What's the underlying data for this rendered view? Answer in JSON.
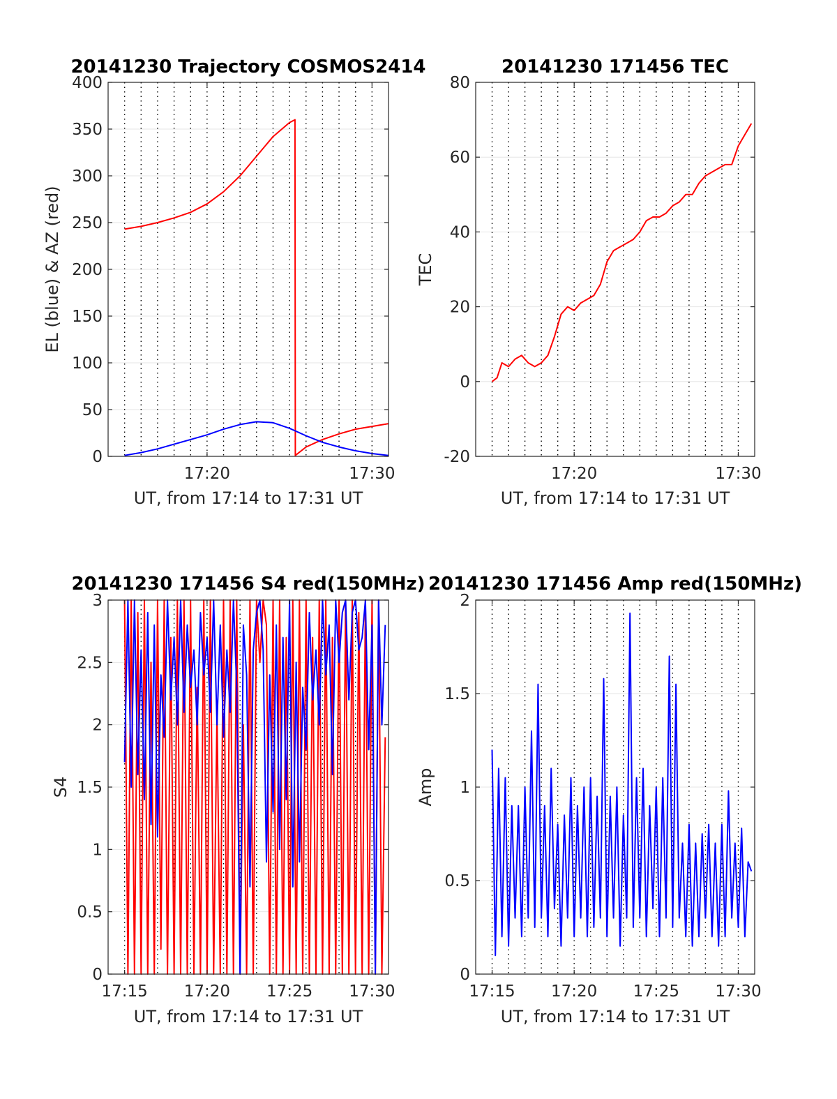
{
  "figure": {
    "background": "#ffffff"
  },
  "chart_data": [
    {
      "type": "line",
      "title": "20141230 Trajectory COSMOS2414",
      "xlabel": "UT, from 17:14 to 17:31 UT",
      "ylabel": "EL (blue) & AZ (red)",
      "x_unit": "minutes since 17:00 UT",
      "xlim": [
        14,
        31
      ],
      "ylim": [
        0,
        400
      ],
      "xticks": [
        20,
        30
      ],
      "xtick_labels": [
        "17:20",
        "17:30"
      ],
      "yticks": [
        0,
        50,
        100,
        150,
        200,
        250,
        300,
        350,
        400
      ],
      "ytick_labels": [
        "0",
        "50",
        "100",
        "150",
        "200",
        "250",
        "300",
        "350",
        "400"
      ],
      "dotted_vlines": [
        15.0,
        16.0,
        17.0,
        18.0,
        19.0,
        20.0,
        21.0,
        22.0,
        23.0,
        24.0,
        25.0,
        26.0,
        27.0,
        28.0,
        29.0,
        30.0
      ],
      "grid": true,
      "series": [
        {
          "color": "#ff0000",
          "x": [
            15.0,
            16.0,
            17.0,
            18.0,
            19.0,
            20.0,
            21.0,
            22.0,
            23.0,
            24.0,
            25.0,
            25.33,
            25.35,
            26.0,
            27.0,
            28.0,
            29.0,
            30.0,
            31.0
          ],
          "values": [
            243,
            246,
            250,
            255,
            261,
            270,
            283,
            300,
            321,
            342,
            357,
            360,
            1,
            10,
            18,
            24,
            29,
            32,
            35
          ]
        },
        {
          "color": "#0000ff",
          "x": [
            15.0,
            16.0,
            17.0,
            18.0,
            19.0,
            20.0,
            21.0,
            22.0,
            23.0,
            24.0,
            25.0,
            26.0,
            27.0,
            28.0,
            29.0,
            30.0,
            31.0
          ],
          "values": [
            1,
            4,
            8,
            13,
            18,
            23,
            29,
            34,
            37,
            36,
            30,
            22,
            15,
            10,
            6,
            3,
            1
          ]
        }
      ]
    },
    {
      "type": "line",
      "title": "20141230 171456 TEC",
      "xlabel": "UT, from 17:14 to 17:31 UT",
      "ylabel": "TEC",
      "x_unit": "minutes since 17:00 UT",
      "xlim": [
        14,
        31
      ],
      "ylim": [
        -20,
        80
      ],
      "xticks": [
        20,
        30
      ],
      "xtick_labels": [
        "17:20",
        "17:30"
      ],
      "yticks": [
        -20,
        0,
        20,
        40,
        60,
        80
      ],
      "ytick_labels": [
        "-20",
        "0",
        "20",
        "40",
        "60",
        "80"
      ],
      "dotted_vlines": [
        15.0,
        16.0,
        17.0,
        18.0,
        19.0,
        20.0,
        21.0,
        22.0,
        23.0,
        24.0,
        25.0,
        26.0,
        27.0,
        28.0,
        29.0,
        30.0
      ],
      "grid": true,
      "series": [
        {
          "color": "#ff0000",
          "x": [
            15.0,
            15.3,
            15.6,
            16.0,
            16.4,
            16.8,
            17.2,
            17.6,
            18.0,
            18.4,
            18.8,
            19.2,
            19.6,
            20.0,
            20.4,
            20.8,
            21.2,
            21.6,
            22.0,
            22.4,
            22.8,
            23.2,
            23.6,
            24.0,
            24.4,
            24.8,
            25.2,
            25.6,
            26.0,
            26.4,
            26.8,
            27.2,
            27.6,
            28.0,
            28.4,
            28.8,
            29.2,
            29.6,
            30.0,
            30.4,
            30.8
          ],
          "values": [
            0,
            1,
            5,
            4,
            6,
            7,
            5,
            4,
            5,
            7,
            12,
            18,
            20,
            19,
            21,
            22,
            23,
            26,
            32,
            35,
            36,
            37,
            38,
            40,
            43,
            44,
            44,
            45,
            47,
            48,
            50,
            50,
            53,
            55,
            56,
            57,
            58,
            58,
            63,
            66,
            69
          ]
        }
      ]
    },
    {
      "type": "line",
      "title": "20141230 171456 S4 red(150MHz)",
      "xlabel": "UT, from 17:14 to 17:31 UT",
      "ylabel": "S4",
      "x_unit": "minutes since 17:00 UT",
      "xlim": [
        14,
        31
      ],
      "ylim": [
        0,
        3
      ],
      "xticks": [
        15,
        20,
        25,
        30
      ],
      "xtick_labels": [
        "17:15",
        "17:20",
        "17:25",
        "17:30"
      ],
      "yticks": [
        0,
        0.5,
        1,
        1.5,
        2,
        2.5,
        3
      ],
      "ytick_labels": [
        "0",
        "0.5",
        "1",
        "1.5",
        "2",
        "2.5",
        "3"
      ],
      "dotted_vlines": [
        15.0,
        16.0,
        17.0,
        18.0,
        19.0,
        20.0,
        21.0,
        22.0,
        23.0,
        24.0,
        25.0,
        26.0,
        27.0,
        28.0,
        29.0,
        30.0
      ],
      "grid": true,
      "series": [
        {
          "color": "#ff0000",
          "x": [
            15.0,
            15.2,
            15.4,
            15.6,
            15.8,
            16.0,
            16.2,
            16.4,
            16.6,
            16.8,
            17.0,
            17.2,
            17.4,
            17.6,
            17.8,
            18.0,
            18.2,
            18.4,
            18.6,
            18.8,
            19.0,
            19.2,
            19.4,
            19.6,
            19.8,
            20.0,
            20.2,
            20.4,
            20.6,
            20.8,
            21.0,
            21.2,
            21.4,
            21.6,
            21.8,
            22.0,
            22.2,
            22.4,
            22.6,
            22.8,
            23.0,
            23.2,
            23.4,
            23.6,
            23.8,
            24.0,
            24.2,
            24.4,
            24.6,
            24.8,
            25.0,
            25.2,
            25.4,
            25.6,
            25.8,
            26.0,
            26.2,
            26.4,
            26.6,
            26.8,
            27.0,
            27.2,
            27.4,
            27.6,
            27.8,
            28.0,
            28.2,
            28.4,
            28.6,
            28.8,
            29.0,
            29.2,
            29.4,
            29.6,
            29.8,
            30.0,
            30.2,
            30.4,
            30.6,
            30.8
          ],
          "values": [
            3.0,
            0.0,
            3.0,
            0.0,
            2.9,
            0.0,
            3.0,
            0.0,
            2.5,
            0.0,
            3.0,
            0.2,
            3.0,
            0.0,
            2.7,
            0.0,
            3.0,
            0.0,
            3.0,
            0.0,
            3.0,
            0.0,
            2.3,
            0.0,
            3.0,
            0.0,
            3.0,
            0.0,
            2.1,
            0.0,
            3.0,
            0.0,
            3.0,
            0.0,
            3.0,
            0.0,
            2.0,
            0.0,
            3.0,
            0.0,
            3.0,
            2.5,
            3.0,
            2.8,
            0.0,
            3.0,
            0.0,
            3.0,
            0.0,
            2.7,
            0.0,
            3.0,
            0.0,
            3.0,
            0.0,
            3.0,
            0.0,
            2.7,
            0.0,
            3.0,
            0.0,
            3.0,
            0.0,
            2.7,
            0.0,
            3.0,
            0.0,
            3.0,
            0.0,
            3.0,
            0.0,
            2.9,
            0.0,
            3.0,
            0.0,
            3.0,
            0.0,
            3.0,
            0.0,
            1.9
          ]
        },
        {
          "color": "#0000ff",
          "x": [
            15.0,
            15.2,
            15.4,
            15.6,
            15.8,
            16.0,
            16.2,
            16.4,
            16.6,
            16.8,
            17.0,
            17.2,
            17.4,
            17.6,
            17.8,
            18.0,
            18.2,
            18.4,
            18.6,
            18.8,
            19.0,
            19.2,
            19.4,
            19.6,
            19.8,
            20.0,
            20.2,
            20.4,
            20.6,
            20.8,
            21.0,
            21.2,
            21.4,
            21.6,
            21.8,
            22.0,
            22.2,
            22.4,
            22.6,
            22.8,
            23.0,
            23.2,
            23.4,
            23.6,
            23.8,
            24.0,
            24.2,
            24.4,
            24.6,
            24.8,
            25.0,
            25.2,
            25.4,
            25.6,
            25.8,
            26.0,
            26.2,
            26.4,
            26.6,
            26.8,
            27.0,
            27.2,
            27.4,
            27.6,
            27.8,
            28.0,
            28.2,
            28.4,
            28.6,
            28.8,
            29.0,
            29.2,
            29.4,
            29.6,
            29.8,
            30.0,
            30.2,
            30.4,
            30.6,
            30.8
          ],
          "values": [
            1.7,
            3.0,
            1.5,
            3.0,
            1.6,
            2.6,
            1.4,
            2.9,
            1.2,
            2.8,
            1.1,
            2.4,
            1.9,
            3.0,
            2.2,
            2.7,
            2.0,
            3.0,
            2.1,
            2.8,
            2.3,
            2.6,
            2.0,
            2.9,
            2.4,
            2.7,
            2.1,
            3.0,
            2.0,
            2.8,
            1.9,
            2.6,
            2.1,
            3.0,
            2.3,
            0.0,
            2.8,
            2.4,
            0.7,
            2.6,
            2.9,
            3.0,
            2.6,
            0.9,
            2.4,
            1.3,
            2.8,
            1.0,
            2.7,
            1.4,
            3.0,
            0.7,
            2.5,
            0.9,
            2.3,
            1.8,
            2.9,
            2.2,
            2.6,
            2.0,
            3.0,
            2.4,
            2.8,
            1.6,
            3.0,
            2.5,
            2.9,
            3.0,
            2.2,
            2.9,
            3.0,
            2.6,
            2.7,
            3.0,
            1.8,
            2.8,
            0.0,
            3.0,
            2.0,
            2.8
          ]
        }
      ]
    },
    {
      "type": "line",
      "title": "20141230 171456 Amp red(150MHz)",
      "xlabel": "UT, from 17:14 to 17:31 UT",
      "ylabel": "Amp",
      "x_unit": "minutes since 17:00 UT",
      "xlim": [
        14,
        31
      ],
      "ylim": [
        0,
        2
      ],
      "xticks": [
        15,
        20,
        25,
        30
      ],
      "xtick_labels": [
        "17:15",
        "17:20",
        "17:25",
        "17:30"
      ],
      "yticks": [
        0,
        0.5,
        1,
        1.5,
        2
      ],
      "ytick_labels": [
        "0",
        "0.5",
        "1",
        "1.5",
        "2"
      ],
      "dotted_vlines": [
        15.0,
        16.0,
        17.0,
        18.0,
        19.0,
        20.0,
        21.0,
        22.0,
        23.0,
        24.0,
        25.0,
        26.0,
        27.0,
        28.0,
        29.0,
        30.0
      ],
      "grid": true,
      "series": [
        {
          "color": "#0000ff",
          "x": [
            15.0,
            15.2,
            15.4,
            15.6,
            15.8,
            16.0,
            16.2,
            16.4,
            16.6,
            16.8,
            17.0,
            17.2,
            17.4,
            17.6,
            17.8,
            18.0,
            18.2,
            18.4,
            18.6,
            18.8,
            19.0,
            19.2,
            19.4,
            19.6,
            19.8,
            20.0,
            20.2,
            20.4,
            20.6,
            20.8,
            21.0,
            21.2,
            21.4,
            21.6,
            21.8,
            22.0,
            22.2,
            22.4,
            22.6,
            22.8,
            23.0,
            23.2,
            23.4,
            23.6,
            23.8,
            24.0,
            24.2,
            24.4,
            24.6,
            24.8,
            25.0,
            25.2,
            25.4,
            25.6,
            25.8,
            26.0,
            26.2,
            26.4,
            26.6,
            26.8,
            27.0,
            27.2,
            27.4,
            27.6,
            27.8,
            28.0,
            28.2,
            28.4,
            28.6,
            28.8,
            29.0,
            29.2,
            29.4,
            29.6,
            29.8,
            30.0,
            30.2,
            30.4,
            30.6,
            30.8
          ],
          "values": [
            1.2,
            0.1,
            1.1,
            0.2,
            1.05,
            0.15,
            0.9,
            0.3,
            0.9,
            0.2,
            1.0,
            0.3,
            1.3,
            0.25,
            1.55,
            0.3,
            0.9,
            0.2,
            1.1,
            0.35,
            0.8,
            0.15,
            0.85,
            0.3,
            1.05,
            0.2,
            0.9,
            0.3,
            1.0,
            0.2,
            1.05,
            0.25,
            0.95,
            0.3,
            1.58,
            0.2,
            0.95,
            0.3,
            1.0,
            0.15,
            0.85,
            0.3,
            1.93,
            0.25,
            1.05,
            0.3,
            1.1,
            0.2,
            0.9,
            0.35,
            1.0,
            0.2,
            1.05,
            0.3,
            1.7,
            0.25,
            1.55,
            0.3,
            0.7,
            0.2,
            0.8,
            0.15,
            0.7,
            0.2,
            0.75,
            0.3,
            0.8,
            0.2,
            0.7,
            0.15,
            0.8,
            0.2,
            0.98,
            0.3,
            0.7,
            0.25,
            0.78,
            0.2,
            0.6,
            0.55
          ]
        }
      ]
    }
  ]
}
